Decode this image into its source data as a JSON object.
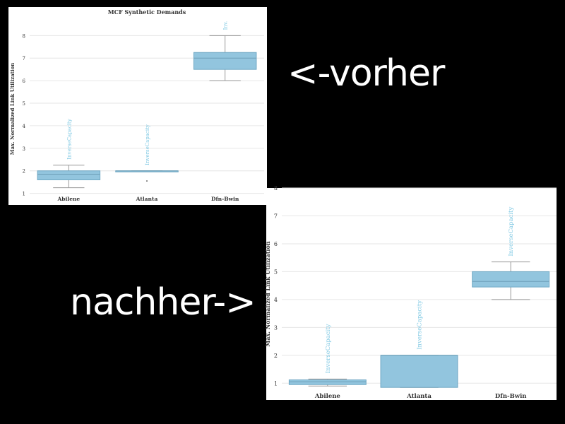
{
  "labels": {
    "before": "<-vorher",
    "after": "nachher->"
  },
  "colors": {
    "box": "#92c5de",
    "box_edge": "#6fa8c4",
    "annotation": "#7ec8e3",
    "grid": "#e6e6e6",
    "background": "#000000"
  },
  "chart_data": [
    {
      "type": "box",
      "title": "MCF Synthetic Demands",
      "xlabel": "",
      "ylabel": "Max. Normalized Link Utilization",
      "categories": [
        "Abilene",
        "Atlanta",
        "Dfn-Bwin"
      ],
      "yticks": [
        1,
        2,
        3,
        4,
        5,
        6,
        7,
        8
      ],
      "ylim": [
        0.8,
        8.7
      ],
      "grid": true,
      "boxes": [
        {
          "category": "Abilene",
          "whisker_low": 1.25,
          "q1": 1.6,
          "median": 1.85,
          "q3": 2.0,
          "whisker_high": 2.25,
          "annotation": "InverseCapacity"
        },
        {
          "category": "Atlanta",
          "whisker_low": 2.0,
          "q1": 2.0,
          "median": 2.0,
          "q3": 2.0,
          "whisker_high": 2.0,
          "outliers": [
            1.55
          ],
          "annotation": "InverseCapacity"
        },
        {
          "category": "Dfn-Bwin",
          "whisker_low": 6.0,
          "q1": 6.5,
          "median": 7.0,
          "q3": 7.25,
          "whisker_high": 8.0,
          "annotation": "Inv."
        }
      ]
    },
    {
      "type": "box",
      "title": "",
      "xlabel": "",
      "ylabel": "Max. Normalized Link Utilization",
      "categories": [
        "Abilene",
        "Atlanta",
        "Dfn-Bwin"
      ],
      "yticks": [
        1,
        2,
        3,
        4,
        5,
        6,
        7,
        8
      ],
      "ylim": [
        0.5,
        7.9
      ],
      "grid": true,
      "boxes": [
        {
          "category": "Abilene",
          "whisker_low": 0.9,
          "q1": 0.95,
          "median": 1.05,
          "q3": 1.12,
          "whisker_high": 1.15,
          "annotation": "InverseCapacity"
        },
        {
          "category": "Atlanta",
          "whisker_low": 0.85,
          "q1": 0.85,
          "median": 2.0,
          "q3": 2.0,
          "whisker_high": 2.0,
          "annotation": "InverseCapacity"
        },
        {
          "category": "Dfn-Bwin",
          "whisker_low": 4.0,
          "q1": 4.45,
          "median": 4.65,
          "q3": 5.0,
          "whisker_high": 5.35,
          "annotation": "InverseCapacity"
        }
      ]
    }
  ]
}
